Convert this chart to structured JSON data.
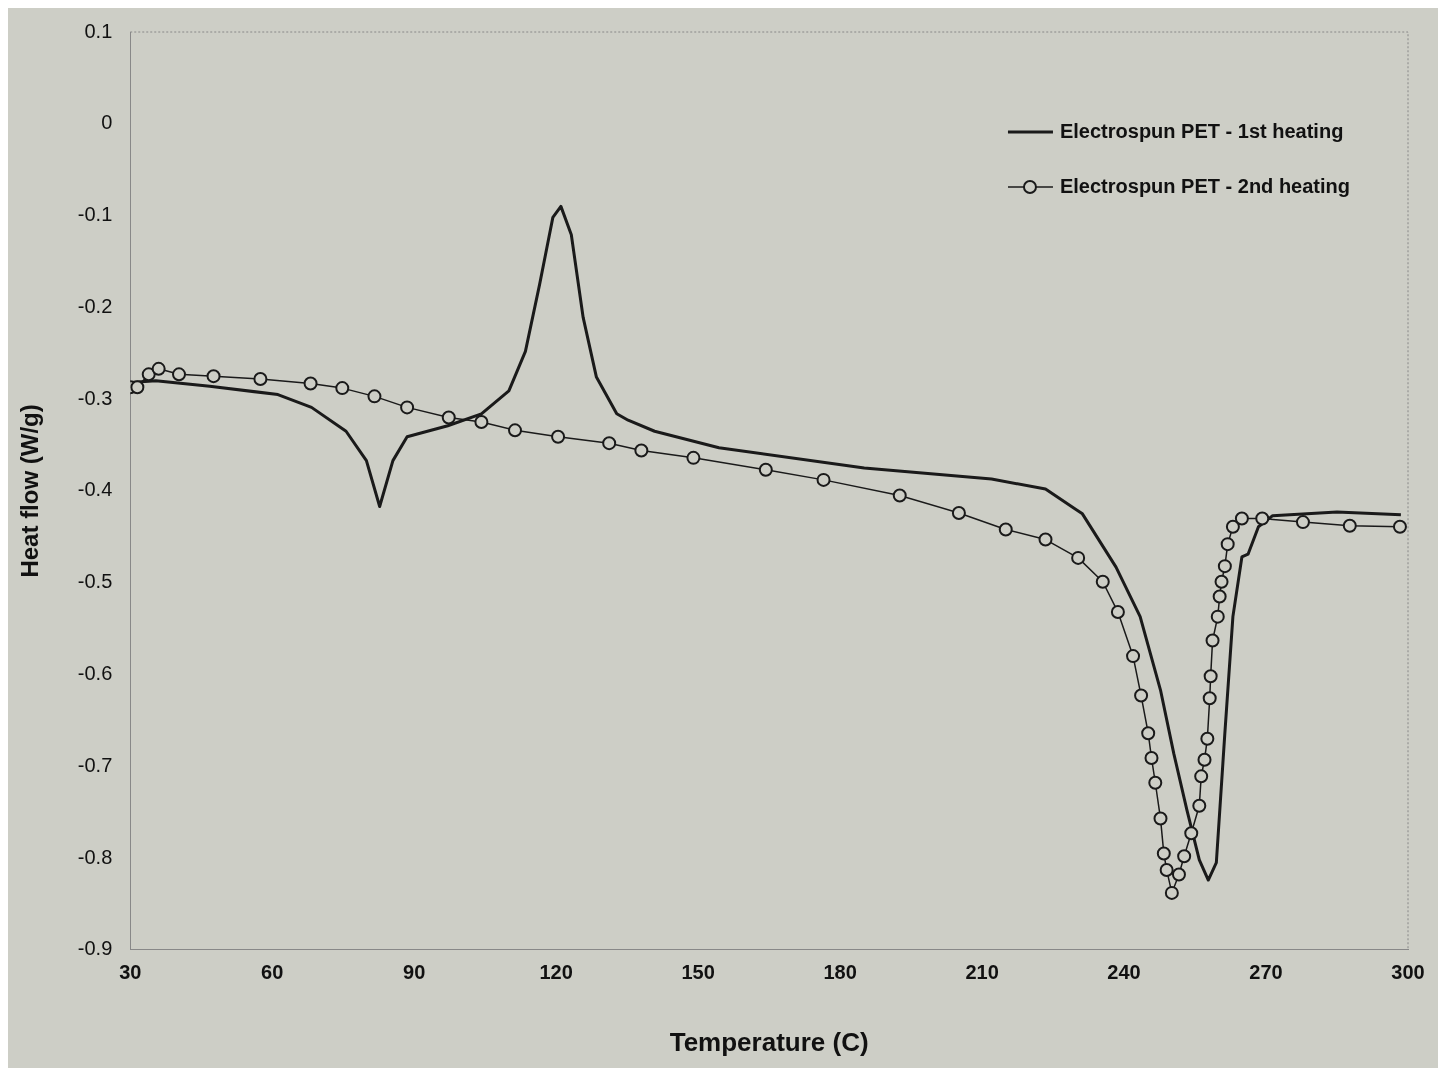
{
  "chart_data": {
    "type": "line",
    "xlabel": "Temperature (C)",
    "ylabel": "Heat flow (W/g)",
    "xlim": [
      30,
      300
    ],
    "xticks": [
      30,
      60,
      90,
      120,
      150,
      180,
      210,
      240,
      270,
      300
    ],
    "ylim": [
      -0.9,
      0.1
    ],
    "yticks": [
      -0.9,
      -0.8,
      -0.7,
      -0.6,
      -0.5,
      -0.4,
      -0.3,
      -0.2,
      -0.1,
      0,
      0.1
    ],
    "grid": false,
    "legend": "top right",
    "series": [
      {
        "name": "Electrospun PET - 1st heating",
        "color": "#1a1a1a",
        "marker": "none",
        "x": [
          30,
          35.4,
          46.8,
          61.2,
          68.3,
          75.6,
          79.9,
          82.7,
          85.5,
          88.5,
          97.1,
          104.2,
          110,
          113.5,
          116.5,
          119.3,
          121,
          123.2,
          125.7,
          128.5,
          132.8,
          135.2,
          140.8,
          154.4,
          185.1,
          212,
          223.4,
          231.2,
          238.3,
          243.4,
          247.7,
          250.5,
          253.3,
          255.9,
          257.8,
          259.5,
          261.3,
          263,
          264.9,
          266.2,
          268.4,
          271.4,
          285,
          298.5
        ],
        "values": [
          -0.282,
          -0.28,
          -0.286,
          -0.295,
          -0.309,
          -0.335,
          -0.367,
          -0.417,
          -0.367,
          -0.341,
          -0.329,
          -0.316,
          -0.291,
          -0.248,
          -0.175,
          -0.102,
          -0.09,
          -0.121,
          -0.211,
          -0.276,
          -0.316,
          -0.323,
          -0.335,
          -0.353,
          -0.375,
          -0.387,
          -0.398,
          -0.425,
          -0.483,
          -0.537,
          -0.617,
          -0.686,
          -0.748,
          -0.802,
          -0.824,
          -0.805,
          -0.664,
          -0.537,
          -0.472,
          -0.469,
          -0.439,
          -0.427,
          -0.423,
          -0.426
        ]
      },
      {
        "name": "Electrospun PET - 2nd heating",
        "color": "#1a1a1a",
        "marker": "circle",
        "x": [
          30,
          31.5,
          33.9,
          36,
          40.3,
          47.6,
          57.5,
          68.1,
          74.8,
          81.6,
          88.5,
          97.3,
          104.2,
          111.3,
          120.4,
          131.2,
          138,
          149,
          164.3,
          176.5,
          192.6,
          205.1,
          215,
          223.4,
          230.3,
          235.5,
          238.7,
          241.9,
          243.6,
          245.1,
          245.8,
          246.6,
          247.7,
          248.4,
          249,
          250.1,
          251.6,
          252.7,
          254.2,
          255.9,
          256.3,
          257,
          257.6,
          258.1,
          258.3,
          258.7,
          259.8,
          260.2,
          260.6,
          261.3,
          261.9,
          263,
          264.9,
          269.2,
          277.8,
          287.7,
          298.3
        ],
        "values": [
          -0.287,
          -0.287,
          -0.273,
          -0.267,
          -0.273,
          -0.275,
          -0.278,
          -0.283,
          -0.288,
          -0.297,
          -0.309,
          -0.32,
          -0.325,
          -0.334,
          -0.341,
          -0.348,
          -0.356,
          -0.364,
          -0.377,
          -0.388,
          -0.405,
          -0.424,
          -0.442,
          -0.453,
          -0.473,
          -0.499,
          -0.532,
          -0.58,
          -0.623,
          -0.664,
          -0.691,
          -0.718,
          -0.757,
          -0.795,
          -0.813,
          -0.838,
          -0.818,
          -0.798,
          -0.773,
          -0.743,
          -0.711,
          -0.693,
          -0.67,
          -0.626,
          -0.602,
          -0.563,
          -0.537,
          -0.515,
          -0.499,
          -0.482,
          -0.458,
          -0.439,
          -0.43,
          -0.43,
          -0.434,
          -0.438,
          -0.439
        ]
      }
    ]
  }
}
